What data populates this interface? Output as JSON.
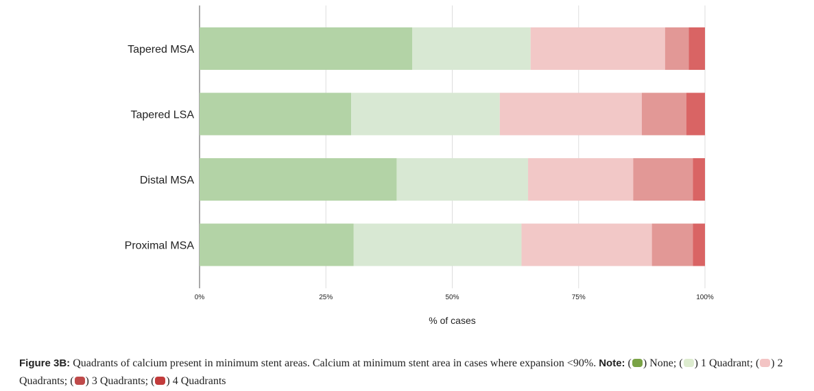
{
  "chart_data": {
    "type": "bar",
    "orientation": "horizontal",
    "stacked": true,
    "categories": [
      "Tapered MSA",
      "Tapered LSA",
      "Distal MSA",
      "Proximal MSA"
    ],
    "series": [
      {
        "name": "None",
        "color": "#b3d3a6",
        "values": [
          42.1,
          30.0,
          39.0,
          30.5
        ]
      },
      {
        "name": "1 Quadrant",
        "color": "#d8e8d3",
        "values": [
          23.4,
          29.4,
          26.0,
          33.2
        ]
      },
      {
        "name": "2 Quadrants",
        "color": "#f2c8c7",
        "values": [
          26.6,
          28.1,
          20.8,
          25.8
        ]
      },
      {
        "name": "3 Quadrants",
        "color": "#e29896",
        "values": [
          4.7,
          8.8,
          11.8,
          8.1
        ]
      },
      {
        "name": "4 Quadrants",
        "color": "#d96464",
        "values": [
          3.2,
          3.7,
          2.4,
          2.4
        ]
      }
    ],
    "xlim": [
      0,
      100
    ],
    "xticks": [
      "0%",
      "25%",
      "50%",
      "75%",
      "100%"
    ],
    "xlabel": "% of cases",
    "ylabel": "",
    "title": "",
    "grid": true
  },
  "caption": {
    "lead": "Figure 3B:",
    "text1": " Quadrants of calcium present in minimum stent areas. Calcium at minimum stent area in cases where expansion <90%. ",
    "note": "Note:",
    "legend_items": [
      {
        "label": "None",
        "suffix": ";",
        "color": "#7aa346"
      },
      {
        "label": "1 Quadrant",
        "suffix": ";",
        "color": "#ddeccf"
      },
      {
        "label": "2 Quadrants",
        "suffix": ";",
        "color": "#f3c4c4"
      },
      {
        "label": "3 Quadrants",
        "suffix": ";",
        "color": "#bf4a4a"
      },
      {
        "label": "4 Quadrants",
        "suffix": "",
        "color": "#c23b3b"
      }
    ]
  }
}
